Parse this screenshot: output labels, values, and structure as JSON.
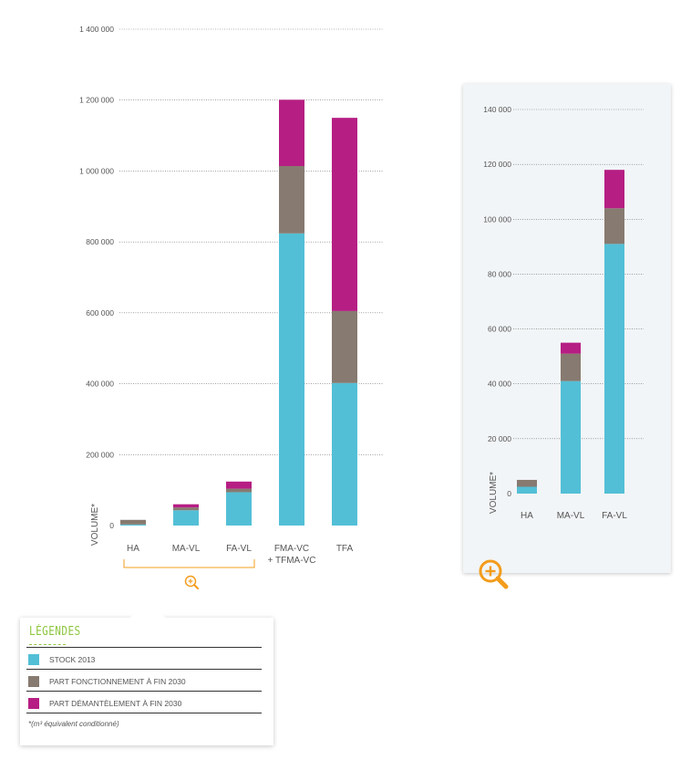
{
  "chart_data": [
    {
      "type": "bar",
      "stacked": true,
      "ylabel": "VOLUME*",
      "ylim": [
        0,
        1400000
      ],
      "yticks": [
        0,
        200000,
        400000,
        600000,
        800000,
        1000000,
        1200000,
        1400000
      ],
      "ytick_labels": [
        "0",
        "200 000",
        "400 000",
        "600 000",
        "800 000",
        "1 000 000",
        "1 200 000",
        "1 400 000"
      ],
      "categories": [
        "HA",
        "MA-VL",
        "FA-VL",
        "FMA-VC",
        "TFA"
      ],
      "category_sublabels": [
        "",
        "",
        "",
        "+ TFMA-VC",
        ""
      ],
      "grid": true,
      "series": [
        {
          "name": "STOCK 2013",
          "values": [
            3000,
            43000,
            94000,
            824000,
            402000
          ]
        },
        {
          "name": "PART FONCTIONNEMENT À FIN 2030",
          "values": [
            13000,
            8000,
            10000,
            190000,
            203000
          ]
        },
        {
          "name": "PART DÉMANTÈLEMENT À FIN 2030",
          "values": [
            0,
            9000,
            20000,
            187000,
            545000
          ]
        }
      ]
    },
    {
      "type": "bar",
      "stacked": true,
      "ylabel": "VOLUME*",
      "ylim": [
        0,
        140000
      ],
      "yticks": [
        0,
        20000,
        40000,
        60000,
        80000,
        100000,
        120000,
        140000
      ],
      "ytick_labels": [
        "0",
        "20 000",
        "40 000",
        "60 000",
        "80 000",
        "100 000",
        "120 000",
        "140 000"
      ],
      "categories": [
        "HA",
        "MA-VL",
        "FA-VL"
      ],
      "grid": true,
      "series": [
        {
          "name": "STOCK 2013",
          "values": [
            2500,
            41000,
            91000
          ]
        },
        {
          "name": "PART FONCTIONNEMENT À FIN 2030",
          "values": [
            2500,
            10000,
            13000
          ]
        },
        {
          "name": "PART DÉMANTÈLEMENT À FIN 2030",
          "values": [
            0,
            4000,
            14000
          ]
        }
      ]
    }
  ],
  "colors": {
    "stock": "#53bfd6",
    "fonctionnement": "#877a70",
    "demantelement": "#b61e83",
    "accent": "#f39c1c",
    "legend_title": "#8dc63f"
  },
  "legend": {
    "title": "LÉGENDES",
    "items": [
      {
        "label": "STOCK 2013",
        "color": "#53bfd6"
      },
      {
        "label": "PART FONCTIONNEMENT À FIN 2030",
        "color": "#877a70"
      },
      {
        "label": "PART DÉMANTÈLEMENT À FIN 2030",
        "color": "#b61e83"
      }
    ],
    "note": "*(m³ équivalent conditionné)"
  },
  "icons": {
    "zoom_small": "zoom-in-icon",
    "zoom_large": "zoom-in-icon"
  }
}
